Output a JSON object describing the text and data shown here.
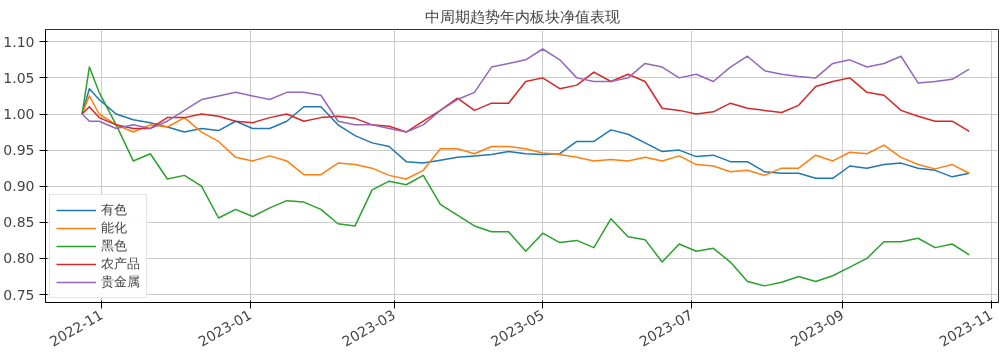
{
  "chart_data": {
    "type": "line",
    "title": "中周期趋势年内板块净值表现",
    "x": [
      "2022-10-24",
      "2022-10-27",
      "2022-10-31",
      "2022-11-07",
      "2022-11-14",
      "2022-11-21",
      "2022-11-28",
      "2022-12-05",
      "2022-12-12",
      "2022-12-19",
      "2022-12-26",
      "2023-01-02",
      "2023-01-09",
      "2023-01-16",
      "2023-01-23",
      "2023-01-30",
      "2023-02-06",
      "2023-02-13",
      "2023-02-20",
      "2023-02-27",
      "2023-03-06",
      "2023-03-13",
      "2023-03-20",
      "2023-03-27",
      "2023-04-03",
      "2023-04-10",
      "2023-04-17",
      "2023-04-24",
      "2023-05-01",
      "2023-05-08",
      "2023-05-15",
      "2023-05-22",
      "2023-05-29",
      "2023-06-05",
      "2023-06-12",
      "2023-06-19",
      "2023-06-26",
      "2023-07-03",
      "2023-07-10",
      "2023-07-17",
      "2023-07-24",
      "2023-07-31",
      "2023-08-07",
      "2023-08-14",
      "2023-08-21",
      "2023-08-28",
      "2023-09-04",
      "2023-09-11",
      "2023-09-18",
      "2023-09-25",
      "2023-10-02",
      "2023-10-09",
      "2023-10-16",
      "2023-10-23"
    ],
    "series": [
      {
        "name": "有色",
        "color": "#1f77b4",
        "values": [
          1.0,
          1.035,
          1.02,
          1.0,
          0.992,
          0.988,
          0.982,
          0.975,
          0.98,
          0.977,
          0.99,
          0.98,
          0.98,
          0.99,
          1.01,
          1.01,
          0.985,
          0.97,
          0.96,
          0.955,
          0.934,
          0.932,
          0.936,
          0.94,
          0.942,
          0.944,
          0.948,
          0.945,
          0.944,
          0.945,
          0.962,
          0.962,
          0.978,
          0.972,
          0.96,
          0.948,
          0.95,
          0.941,
          0.943,
          0.934,
          0.934,
          0.92,
          0.918,
          0.918,
          0.911,
          0.911,
          0.928,
          0.925,
          0.93,
          0.932,
          0.925,
          0.922,
          0.913,
          0.918
        ]
      },
      {
        "name": "能化",
        "color": "#ff7f0e",
        "values": [
          1.0,
          1.025,
          1.0,
          0.985,
          0.975,
          0.985,
          0.982,
          0.995,
          0.975,
          0.962,
          0.94,
          0.935,
          0.942,
          0.935,
          0.916,
          0.916,
          0.932,
          0.93,
          0.925,
          0.915,
          0.91,
          0.922,
          0.952,
          0.952,
          0.945,
          0.955,
          0.955,
          0.952,
          0.946,
          0.944,
          0.94,
          0.935,
          0.937,
          0.935,
          0.94,
          0.935,
          0.942,
          0.93,
          0.928,
          0.92,
          0.922,
          0.915,
          0.925,
          0.925,
          0.943,
          0.935,
          0.947,
          0.945,
          0.957,
          0.94,
          0.93,
          0.924,
          0.93,
          0.918
        ]
      },
      {
        "name": "黑色",
        "color": "#2ca02c",
        "values": [
          1.0,
          1.065,
          1.03,
          0.985,
          0.935,
          0.945,
          0.91,
          0.915,
          0.9,
          0.856,
          0.868,
          0.858,
          0.87,
          0.88,
          0.878,
          0.868,
          0.848,
          0.845,
          0.895,
          0.907,
          0.902,
          0.915,
          0.875,
          0.86,
          0.845,
          0.837,
          0.837,
          0.81,
          0.835,
          0.822,
          0.825,
          0.815,
          0.855,
          0.83,
          0.826,
          0.795,
          0.82,
          0.81,
          0.814,
          0.795,
          0.768,
          0.762,
          0.767,
          0.775,
          0.768,
          0.776,
          0.788,
          0.8,
          0.823,
          0.823,
          0.828,
          0.815,
          0.82,
          0.805
        ]
      },
      {
        "name": "农产品",
        "color": "#d62728",
        "values": [
          1.0,
          1.01,
          0.995,
          0.985,
          0.98,
          0.98,
          0.995,
          0.995,
          1.0,
          0.997,
          0.99,
          0.988,
          0.995,
          1.0,
          0.99,
          0.995,
          0.997,
          0.994,
          0.985,
          0.983,
          0.975,
          0.99,
          1.005,
          1.022,
          1.005,
          1.015,
          1.015,
          1.045,
          1.05,
          1.035,
          1.04,
          1.058,
          1.045,
          1.055,
          1.045,
          1.008,
          1.005,
          1.0,
          1.003,
          1.015,
          1.008,
          1.005,
          1.002,
          1.012,
          1.038,
          1.045,
          1.05,
          1.03,
          1.026,
          1.005,
          0.997,
          0.99,
          0.99,
          0.976
        ]
      },
      {
        "name": "贵金属",
        "color": "#9467bd",
        "values": [
          1.0,
          0.99,
          0.99,
          0.98,
          0.985,
          0.98,
          0.99,
          1.005,
          1.02,
          1.025,
          1.03,
          1.025,
          1.02,
          1.03,
          1.03,
          1.026,
          0.99,
          0.985,
          0.985,
          0.98,
          0.975,
          0.985,
          1.005,
          1.02,
          1.03,
          1.065,
          1.07,
          1.075,
          1.09,
          1.075,
          1.05,
          1.045,
          1.045,
          1.05,
          1.07,
          1.065,
          1.05,
          1.055,
          1.045,
          1.065,
          1.08,
          1.06,
          1.055,
          1.052,
          1.05,
          1.07,
          1.075,
          1.065,
          1.07,
          1.08,
          1.043,
          1.045,
          1.048,
          1.062
        ]
      }
    ],
    "xlim": [
      "2022-10-09",
      "2023-11-04"
    ],
    "xticks": [
      {
        "value": "2022-11-01",
        "label": "2022-11"
      },
      {
        "value": "2023-01-01",
        "label": "2023-01"
      },
      {
        "value": "2023-03-01",
        "label": "2023-03"
      },
      {
        "value": "2023-05-01",
        "label": "2023-05"
      },
      {
        "value": "2023-07-01",
        "label": "2023-07"
      },
      {
        "value": "2023-09-01",
        "label": "2023-09"
      },
      {
        "value": "2023-11-01",
        "label": "2023-11"
      }
    ],
    "ylim": [
      0.739,
      1.117
    ],
    "yticks": [
      {
        "value": 0.75,
        "label": "0.75"
      },
      {
        "value": 0.8,
        "label": "0.80"
      },
      {
        "value": 0.85,
        "label": "0.85"
      },
      {
        "value": 0.9,
        "label": "0.90"
      },
      {
        "value": 0.95,
        "label": "0.95"
      },
      {
        "value": 1.0,
        "label": "1.00"
      },
      {
        "value": 1.05,
        "label": "1.05"
      },
      {
        "value": 1.1,
        "label": "1.10"
      }
    ],
    "grid": true,
    "legend": "bottom left",
    "marker": "none",
    "line_style": "solid"
  }
}
